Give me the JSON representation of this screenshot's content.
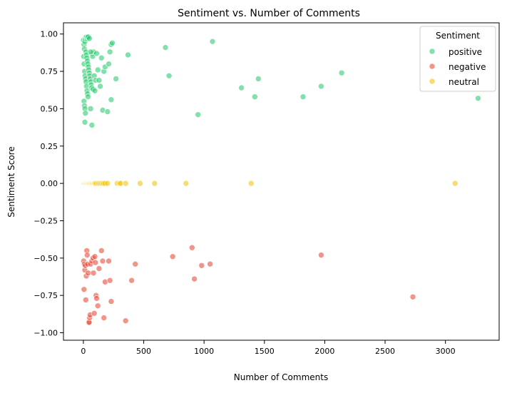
{
  "chart_data": {
    "type": "scatter",
    "title": "Sentiment vs. Number of Comments",
    "xlabel": "Number of Comments",
    "ylabel": "Sentiment Score",
    "xlim": [
      -165,
      3445
    ],
    "ylim": [
      -1.05,
      1.075
    ],
    "x_ticks": [
      "0",
      "500",
      "1000",
      "1500",
      "2000",
      "2500",
      "3000"
    ],
    "y_ticks": [
      "1.00",
      "0.75",
      "0.50",
      "0.25",
      "0.00",
      "−0.25",
      "−0.50",
      "−0.75",
      "−1.00"
    ],
    "grid": false,
    "legend": {
      "title": "Sentiment",
      "position": "top-right"
    },
    "series": [
      {
        "name": "positive",
        "color": "#2ecc71",
        "points": [
          [
            1,
            0.96
          ],
          [
            5,
            0.93
          ],
          [
            8,
            0.9
          ],
          [
            12,
            0.95
          ],
          [
            15,
            0.97
          ],
          [
            20,
            0.98
          ],
          [
            25,
            0.98
          ],
          [
            30,
            0.97
          ],
          [
            35,
            0.98
          ],
          [
            40,
            0.98
          ],
          [
            50,
            0.97
          ],
          [
            3,
            0.85
          ],
          [
            6,
            0.8
          ],
          [
            10,
            0.75
          ],
          [
            14,
            0.72
          ],
          [
            18,
            0.7
          ],
          [
            22,
            0.68
          ],
          [
            26,
            0.65
          ],
          [
            30,
            0.62
          ],
          [
            34,
            0.6
          ],
          [
            38,
            0.58
          ],
          [
            5,
            0.55
          ],
          [
            9,
            0.52
          ],
          [
            13,
            0.5
          ],
          [
            17,
            0.47
          ],
          [
            21,
            0.88
          ],
          [
            25,
            0.86
          ],
          [
            29,
            0.84
          ],
          [
            33,
            0.82
          ],
          [
            37,
            0.8
          ],
          [
            41,
            0.78
          ],
          [
            45,
            0.76
          ],
          [
            49,
            0.74
          ],
          [
            53,
            0.72
          ],
          [
            57,
            0.7
          ],
          [
            61,
            0.68
          ],
          [
            65,
            0.66
          ],
          [
            69,
            0.64
          ],
          [
            73,
            0.87
          ],
          [
            77,
            0.85
          ],
          [
            81,
            0.63
          ],
          [
            85,
            0.88
          ],
          [
            90,
            0.72
          ],
          [
            95,
            0.62
          ],
          [
            100,
            0.69
          ],
          [
            110,
            0.87
          ],
          [
            120,
            0.76
          ],
          [
            130,
            0.69
          ],
          [
            140,
            0.65
          ],
          [
            150,
            0.84
          ],
          [
            160,
            0.49
          ],
          [
            170,
            0.75
          ],
          [
            180,
            0.78
          ],
          [
            200,
            0.48
          ],
          [
            210,
            0.8
          ],
          [
            220,
            0.88
          ],
          [
            230,
            0.56
          ],
          [
            230,
            0.93
          ],
          [
            240,
            0.94
          ],
          [
            12,
            0.41
          ],
          [
            60,
            0.5
          ],
          [
            70,
            0.39
          ],
          [
            60,
            0.88
          ],
          [
            270,
            0.7
          ],
          [
            370,
            0.86
          ],
          [
            680,
            0.91
          ],
          [
            710,
            0.72
          ],
          [
            950,
            0.46
          ],
          [
            1070,
            0.95
          ],
          [
            1310,
            0.64
          ],
          [
            1420,
            0.58
          ],
          [
            1450,
            0.7
          ],
          [
            1820,
            0.58
          ],
          [
            1970,
            0.65
          ],
          [
            2140,
            0.74
          ],
          [
            3270,
            0.57
          ]
        ]
      },
      {
        "name": "negative",
        "color": "#e74c3c",
        "points": [
          [
            2,
            -0.52
          ],
          [
            5,
            -0.71
          ],
          [
            8,
            -0.54
          ],
          [
            12,
            -0.58
          ],
          [
            16,
            -0.55
          ],
          [
            20,
            -0.78
          ],
          [
            24,
            -0.62
          ],
          [
            28,
            -0.45
          ],
          [
            32,
            -0.48
          ],
          [
            36,
            -0.54
          ],
          [
            40,
            -0.6
          ],
          [
            44,
            -0.93
          ],
          [
            48,
            -0.93
          ],
          [
            52,
            -0.9
          ],
          [
            56,
            -0.88
          ],
          [
            60,
            -0.54
          ],
          [
            70,
            -0.52
          ],
          [
            80,
            -0.5
          ],
          [
            84,
            -0.6
          ],
          [
            90,
            -0.87
          ],
          [
            95,
            -0.49
          ],
          [
            100,
            -0.53
          ],
          [
            105,
            -0.75
          ],
          [
            110,
            -0.77
          ],
          [
            120,
            -0.82
          ],
          [
            130,
            -0.57
          ],
          [
            150,
            -0.45
          ],
          [
            160,
            -0.52
          ],
          [
            170,
            -0.9
          ],
          [
            180,
            -0.66
          ],
          [
            210,
            -0.52
          ],
          [
            220,
            -0.65
          ],
          [
            230,
            -0.79
          ],
          [
            350,
            -0.92
          ],
          [
            400,
            -0.65
          ],
          [
            430,
            -0.54
          ],
          [
            740,
            -0.49
          ],
          [
            900,
            -0.43
          ],
          [
            920,
            -0.64
          ],
          [
            980,
            -0.55
          ],
          [
            1050,
            -0.54
          ],
          [
            1970,
            -0.48
          ],
          [
            2730,
            -0.76
          ]
        ]
      },
      {
        "name": "neutral",
        "color": "#f1c40f",
        "points": [
          [
            2,
            0
          ],
          [
            6,
            0
          ],
          [
            10,
            0
          ],
          [
            14,
            0
          ],
          [
            18,
            0
          ],
          [
            22,
            0
          ],
          [
            26,
            0
          ],
          [
            30,
            0
          ],
          [
            34,
            0
          ],
          [
            38,
            0
          ],
          [
            42,
            0
          ],
          [
            46,
            0
          ],
          [
            50,
            0
          ],
          [
            55,
            0
          ],
          [
            60,
            0
          ],
          [
            65,
            0
          ],
          [
            70,
            0
          ],
          [
            75,
            0
          ],
          [
            80,
            0
          ],
          [
            85,
            0
          ],
          [
            90,
            0
          ],
          [
            95,
            0
          ],
          [
            100,
            0
          ],
          [
            110,
            0
          ],
          [
            120,
            0
          ],
          [
            130,
            0
          ],
          [
            140,
            0
          ],
          [
            150,
            0
          ],
          [
            160,
            0
          ],
          [
            170,
            0
          ],
          [
            180,
            0
          ],
          [
            200,
            0
          ],
          [
            280,
            0
          ],
          [
            300,
            0
          ],
          [
            310,
            0
          ],
          [
            350,
            0
          ],
          [
            470,
            0
          ],
          [
            590,
            0
          ],
          [
            850,
            0
          ],
          [
            1390,
            0
          ],
          [
            3080,
            0
          ]
        ]
      }
    ]
  }
}
